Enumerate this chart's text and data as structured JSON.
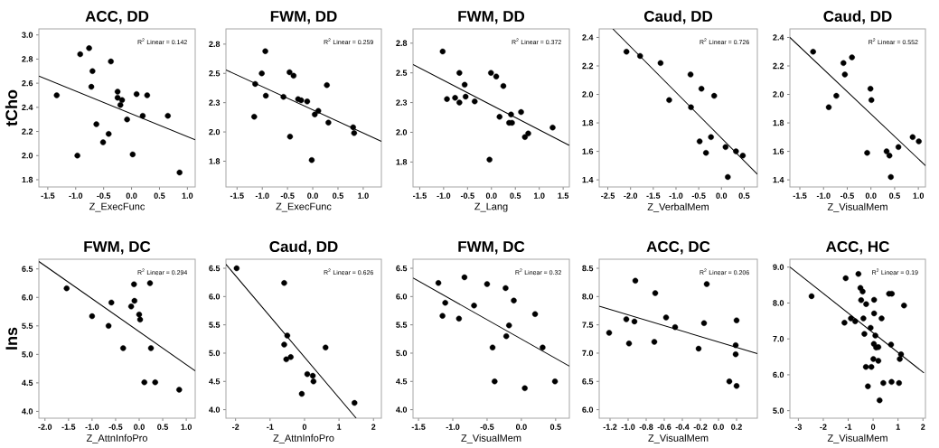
{
  "chart_data": [
    {
      "type": "scatter",
      "title": "ACC, DD",
      "xlabel": "Z_ExecFunc",
      "ylabel": "tCho",
      "annotations": [
        "R$^{2}$ Linear = 0.142"
      ],
      "xlim": [
        -1.66,
        1.14
      ],
      "ylim": [
        1.74,
        3.05
      ],
      "xticks": [
        -1.5,
        {
          "value": -1,
          "label": "-1.0"
        },
        -0.5,
        {
          "value": 0,
          "label": "0.0"
        },
        0.5,
        {
          "value": 1,
          "label": "1.0"
        }
      ],
      "yticks": [
        1.8,
        {
          "value": 2,
          "label": "2.0"
        },
        2.2,
        2.4,
        2.6,
        2.8,
        {
          "value": 3,
          "label": "3.0"
        }
      ],
      "series": [
        {
          "color": "#000000",
          "marker": "circle",
          "x": [
            -1.34,
            -0.76,
            -0.92,
            -0.7,
            -0.72,
            -0.37,
            -0.25,
            -0.25,
            -0.17,
            -0.2,
            -0.63,
            -0.41,
            -0.51,
            -0.97,
            -0.08,
            0.02,
            0.09,
            0.28,
            0.2,
            0.65,
            0.86
          ],
          "values": [
            2.5,
            2.89,
            2.84,
            2.7,
            2.57,
            2.78,
            2.53,
            2.48,
            2.46,
            2.42,
            2.26,
            2.18,
            2.11,
            2.0,
            2.3,
            2.01,
            2.51,
            2.5,
            2.33,
            2.33,
            1.86
          ]
        },
        {
          "type": "line",
          "color": "#000000",
          "x": [
            -1.66,
            1.14
          ],
          "values": [
            2.66,
            2.13
          ]
        }
      ]
    },
    {
      "type": "scatter",
      "title": "FWM, DD",
      "xlabel": "Z_ExecFunc",
      "annotations": [
        "R$^{2}$ Linear = 0.259"
      ],
      "xlim": [
        -1.72,
        1.36
      ],
      "ylim": [
        1.53,
        2.88
      ],
      "xticks": [
        -1.5,
        {
          "value": -1,
          "label": "-1.0"
        },
        -0.5,
        {
          "value": 0,
          "label": "0.0"
        },
        0.5,
        {
          "value": 1,
          "label": "1.0"
        }
      ],
      "yticks": [
        {
          "value": 1.75,
          "label": "1.8"
        },
        {
          "value": 2,
          "label": "2.0"
        },
        {
          "value": 2.25,
          "label": "2.3"
        },
        2.5,
        {
          "value": 2.75,
          "label": "2.8"
        }
      ],
      "series": [
        {
          "color": "#000000",
          "marker": "circle",
          "x": [
            -0.94,
            -1.01,
            -1.14,
            -0.93,
            -1.16,
            -0.46,
            -0.38,
            -0.58,
            -0.29,
            -0.23,
            -0.11,
            0.11,
            0.04,
            0.28,
            0.31,
            -0.45,
            -0.02,
            0.8,
            0.82
          ],
          "values": [
            2.69,
            2.5,
            2.41,
            2.31,
            2.13,
            2.51,
            2.48,
            2.3,
            2.28,
            2.27,
            2.26,
            2.18,
            2.15,
            2.4,
            2.08,
            1.96,
            1.76,
            2.04,
            1.99
          ]
        },
        {
          "type": "line",
          "color": "#000000",
          "x": [
            -1.72,
            1.36
          ],
          "values": [
            2.53,
            1.92
          ]
        }
      ]
    },
    {
      "type": "scatter",
      "title": "FWM, DD",
      "xlabel": "Z_Lang",
      "annotations": [
        "R$^{2}$ Linear = 0.372"
      ],
      "xlim": [
        -1.64,
        1.63
      ],
      "ylim": [
        1.54,
        2.87
      ],
      "xticks": [
        -1.5,
        {
          "value": -1,
          "label": "-1.0"
        },
        -0.5,
        {
          "value": 0,
          "label": "0.0"
        },
        0.5,
        {
          "value": 1,
          "label": "1.0"
        },
        1.5
      ],
      "yticks": [
        {
          "value": 1.75,
          "label": "1.8"
        },
        {
          "value": 2,
          "label": "2.0"
        },
        {
          "value": 2.25,
          "label": "2.3"
        },
        2.5,
        {
          "value": 2.75,
          "label": "2.8"
        }
      ],
      "series": [
        {
          "color": "#000000",
          "marker": "circle",
          "x": [
            -1.02,
            -0.93,
            -0.76,
            -0.67,
            -0.67,
            -0.56,
            -0.54,
            -0.35,
            -0.01,
            0.1,
            0.25,
            0.17,
            0.37,
            0.43,
            0.41,
            0.62,
            0.7,
            0.77,
            1.28,
            -0.04
          ],
          "values": [
            2.68,
            2.28,
            2.29,
            2.25,
            2.5,
            2.4,
            2.3,
            2.26,
            2.5,
            2.47,
            2.39,
            2.13,
            2.08,
            2.08,
            2.15,
            2.17,
            1.96,
            1.99,
            2.04,
            1.77
          ]
        },
        {
          "type": "line",
          "color": "#000000",
          "x": [
            -1.64,
            1.63
          ],
          "values": [
            2.57,
            1.89
          ]
        }
      ]
    },
    {
      "type": "scatter",
      "title": "Caud, DD",
      "xlabel": "Z_VerbalMem",
      "annotations": [
        "R$^{2}$ Linear = 0.726"
      ],
      "xlim": [
        -2.69,
        0.79
      ],
      "ylim": [
        1.35,
        2.46
      ],
      "xticks": [
        -2.5,
        {
          "value": -2,
          "label": "-2.0"
        },
        -1.5,
        {
          "value": -1,
          "label": "-1.0"
        },
        -0.5,
        {
          "value": 0,
          "label": "0.0"
        },
        0.5
      ],
      "yticks": [
        1.4,
        1.6,
        1.8,
        {
          "value": 2,
          "label": "2.0"
        },
        2.2,
        2.4
      ],
      "series": [
        {
          "color": "#000000",
          "marker": "circle",
          "x": [
            -2.09,
            -1.79,
            -1.34,
            -1.15,
            -0.68,
            -0.44,
            -0.16,
            -0.67,
            -0.48,
            -0.23,
            -0.34,
            0.09,
            0.14,
            0.32,
            0.47
          ],
          "values": [
            2.3,
            2.27,
            2.22,
            1.96,
            2.14,
            2.04,
            1.99,
            1.91,
            1.67,
            1.7,
            1.59,
            1.63,
            1.42,
            1.6,
            1.57
          ]
        },
        {
          "type": "line",
          "color": "#000000",
          "x": [
            -2.39,
            0.79
          ],
          "values": [
            2.46,
            1.44
          ]
        }
      ]
    },
    {
      "type": "scatter",
      "title": "Caud, DD",
      "xlabel": "Z_VisualMem",
      "annotations": [
        "R$^{2}$ Linear = 0.552"
      ],
      "xlim": [
        -1.71,
        1.15
      ],
      "ylim": [
        1.35,
        2.46
      ],
      "xticks": [
        -1.5,
        {
          "value": -1,
          "label": "-1.0"
        },
        -0.5,
        {
          "value": 0,
          "label": "0.0"
        },
        0.5,
        {
          "value": 1,
          "label": "1.0"
        }
      ],
      "yticks": [
        1.4,
        1.6,
        1.8,
        {
          "value": 2,
          "label": "2.0"
        },
        2.2,
        2.4
      ],
      "series": [
        {
          "color": "#000000",
          "marker": "circle",
          "x": [
            -1.22,
            -0.58,
            -0.55,
            -0.4,
            -0.73,
            -0.89,
            -0.01,
            0.01,
            -0.08,
            0.33,
            0.39,
            0.42,
            0.58,
            0.88,
            1.01
          ],
          "values": [
            2.3,
            2.22,
            2.14,
            2.26,
            1.99,
            1.91,
            2.04,
            1.96,
            1.59,
            1.6,
            1.57,
            1.42,
            1.63,
            1.7,
            1.67
          ]
        },
        {
          "type": "line",
          "color": "#000000",
          "x": [
            -1.71,
            1.15
          ],
          "values": [
            2.4,
            1.5
          ]
        }
      ]
    },
    {
      "type": "scatter",
      "title": "FWM, DC",
      "xlabel": "Z_AttnInfoPro",
      "ylabel": "Ins",
      "annotations": [
        "R$^{2}$ Linear = 0.294"
      ],
      "xlim": [
        -2.13,
        1.19
      ],
      "ylim": [
        3.88,
        6.67
      ],
      "xticks": [
        {
          "value": -2,
          "label": "-2.0"
        },
        -1.5,
        {
          "value": -1,
          "label": "-1.0"
        },
        -0.5,
        {
          "value": 0,
          "label": "0.0"
        },
        0.5,
        {
          "value": 1,
          "label": "1.0"
        }
      ],
      "yticks": [
        {
          "value": 4,
          "label": "4.0"
        },
        4.5,
        {
          "value": 5,
          "label": "5.0"
        },
        5.5,
        {
          "value": 6,
          "label": "6.0"
        },
        6.5
      ],
      "series": [
        {
          "color": "#000000",
          "marker": "circle",
          "x": [
            -1.54,
            -1.0,
            -0.59,
            -0.65,
            -0.34,
            -0.17,
            -0.11,
            -0.1,
            0.0,
            0.02,
            0.23,
            0.25,
            0.11,
            0.34,
            0.85
          ],
          "values": [
            6.16,
            5.67,
            5.91,
            5.5,
            5.11,
            5.84,
            6.23,
            5.94,
            5.7,
            5.61,
            6.25,
            5.11,
            4.51,
            4.51,
            4.38
          ]
        },
        {
          "type": "line",
          "color": "#000000",
          "x": [
            -2.13,
            1.19
          ],
          "values": [
            6.63,
            4.71
          ]
        }
      ]
    },
    {
      "type": "scatter",
      "title": "Caud, DD",
      "xlabel": "Z_AttnInfoPro",
      "annotations": [
        "R$^{2}$ Linear = 0.626"
      ],
      "xlim": [
        -2.28,
        2.23
      ],
      "ylim": [
        3.85,
        6.66
      ],
      "xticks": [
        -2,
        -1,
        0,
        1,
        2
      ],
      "yticks": [
        {
          "value": 4,
          "label": "4.0"
        },
        4.5,
        {
          "value": 5,
          "label": "5.0"
        },
        5.5,
        {
          "value": 6,
          "label": "6.0"
        },
        6.5
      ],
      "series": [
        {
          "color": "#000000",
          "marker": "circle",
          "x": [
            -1.97,
            -0.59,
            -0.5,
            -0.59,
            -0.53,
            -0.4,
            0.08,
            0.24,
            0.26,
            -0.08,
            0.61,
            1.45
          ],
          "values": [
            6.5,
            6.24,
            5.31,
            5.15,
            4.89,
            4.93,
            4.63,
            4.6,
            4.5,
            4.28,
            5.1,
            4.12
          ]
        },
        {
          "type": "line",
          "color": "#000000",
          "x": [
            -2.28,
            1.5
          ],
          "values": [
            6.57,
            3.85
          ]
        }
      ]
    },
    {
      "type": "scatter",
      "title": "FWM, DC",
      "xlabel": "Z_VisualMem",
      "annotations": [
        "R$^{2}$ Linear = 0.32"
      ],
      "xlim": [
        -1.58,
        0.7
      ],
      "ylim": [
        3.85,
        6.66
      ],
      "xticks": [
        -1.5,
        {
          "value": -1,
          "label": "-1.0"
        },
        -0.5,
        {
          "value": 0,
          "label": "0.0"
        },
        0.5
      ],
      "yticks": [
        {
          "value": 4,
          "label": "4.0"
        },
        4.5,
        {
          "value": 5,
          "label": "5.0"
        },
        5.5,
        {
          "value": 6,
          "label": "6.0"
        },
        6.5
      ],
      "series": [
        {
          "color": "#000000",
          "marker": "circle",
          "x": [
            -1.21,
            -1.11,
            -1.15,
            -0.83,
            -0.91,
            -0.69,
            -0.5,
            -0.23,
            -0.11,
            -0.18,
            -0.22,
            -0.42,
            -0.39,
            0.05,
            0.2,
            0.31,
            0.49
          ],
          "values": [
            6.24,
            5.89,
            5.66,
            6.34,
            5.61,
            5.84,
            6.22,
            6.15,
            5.93,
            5.49,
            5.3,
            5.1,
            4.5,
            4.38,
            5.69,
            5.1,
            4.5
          ]
        },
        {
          "type": "line",
          "color": "#000000",
          "x": [
            -1.58,
            0.7
          ],
          "values": [
            6.33,
            4.77
          ]
        }
      ]
    },
    {
      "type": "scatter",
      "title": "ACC, DC",
      "xlabel": "Z_VisualMem",
      "annotations": [
        "R$^{2}$ Linear = 0.206"
      ],
      "xlim": [
        -1.32,
        0.43
      ],
      "ylim": [
        5.85,
        8.66
      ],
      "xticks": [
        -1.2,
        {
          "value": -1,
          "label": "-1.0"
        },
        -0.8,
        -0.6,
        -0.4,
        -0.2,
        {
          "value": 0,
          "label": "0.0"
        },
        0.2
      ],
      "yticks": [
        {
          "value": 6,
          "label": "6.0"
        },
        6.5,
        {
          "value": 7,
          "label": "7.0"
        },
        7.5,
        {
          "value": 8,
          "label": "8.0"
        },
        8.5
      ],
      "series": [
        {
          "color": "#000000",
          "marker": "circle",
          "x": [
            -1.21,
            -1.02,
            -0.99,
            -0.92,
            -0.93,
            -0.7,
            -0.58,
            -0.71,
            -0.48,
            -0.22,
            -0.16,
            -0.13,
            0.2,
            0.19,
            0.19,
            0.12,
            0.2
          ],
          "values": [
            7.36,
            7.6,
            7.17,
            8.28,
            7.56,
            8.06,
            7.63,
            7.2,
            7.46,
            7.08,
            7.53,
            8.22,
            7.58,
            7.14,
            6.98,
            6.5,
            6.42
          ]
        },
        {
          "type": "line",
          "color": "#000000",
          "x": [
            -1.32,
            0.43
          ],
          "values": [
            7.83,
            6.99
          ]
        }
      ]
    },
    {
      "type": "scatter",
      "title": "ACC, HC",
      "xlabel": "Z_VisualMem",
      "annotations": [
        "R$^{2}$ Linear = 0.19"
      ],
      "xlim": [
        -3.34,
        2.1
      ],
      "ylim": [
        4.79,
        9.22
      ],
      "xticks": [
        -3,
        -2,
        -1,
        0,
        1,
        2
      ],
      "yticks": [
        {
          "value": 5,
          "label": "5.0"
        },
        {
          "value": 6,
          "label": "6.0"
        },
        {
          "value": 7,
          "label": "7.0"
        },
        {
          "value": 8,
          "label": "8.0"
        },
        {
          "value": 9,
          "label": "9.0"
        }
      ],
      "series": [
        {
          "color": "#000000",
          "marker": "circle",
          "x": [
            -2.47,
            -1.1,
            -1.15,
            -0.89,
            -0.72,
            -0.59,
            -0.51,
            -0.42,
            -0.48,
            -0.28,
            -0.39,
            -0.35,
            -0.29,
            -0.21,
            -0.1,
            -0.07,
            0.01,
            0.04,
            0.04,
            0.09,
            0.03,
            0.09,
            0.12,
            0.21,
            0.21,
            0.26,
            0.34,
            0.41,
            0.64,
            0.75,
            0.72,
            0.74,
            0.99,
            1.07,
            1.04,
            1.12,
            1.24
          ],
          "values": [
            8.19,
            8.69,
            7.45,
            7.57,
            7.49,
            8.81,
            8.42,
            8.32,
            8.08,
            7.97,
            7.57,
            7.14,
            6.22,
            5.68,
            7.31,
            6.22,
            6.44,
            8.09,
            7.71,
            7.09,
            6.86,
            null,
            6.76,
            6.77,
            6.39,
            5.29,
            7.57,
            5.77,
            8.26,
            8.26,
            6.84,
            5.8,
            null,
            6.44,
            5.77,
            6.57,
            7.93
          ]
        },
        {
          "type": "line",
          "color": "#000000",
          "x": [
            -3.34,
            2.04
          ],
          "values": [
            9.0,
            6.05
          ]
        }
      ]
    }
  ]
}
